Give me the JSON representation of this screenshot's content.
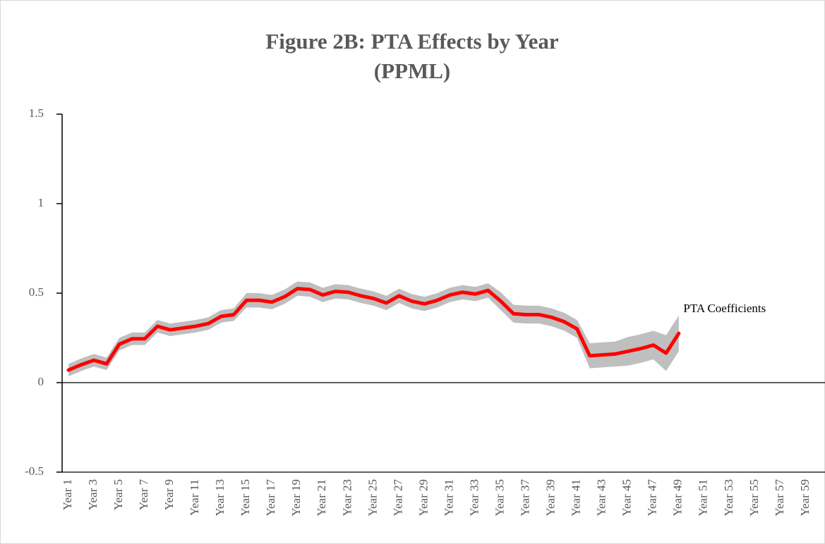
{
  "chart_data": {
    "type": "line",
    "title": [
      "Figure 2B: PTA Effects by Year",
      "(PPML)"
    ],
    "categories": [
      "Year 1",
      null,
      "Year 3",
      null,
      "Year 5",
      null,
      "Year 7",
      null,
      "Year 9",
      null,
      "Year 11",
      null,
      "Year 13",
      null,
      "Year 15",
      null,
      "Year 17",
      null,
      "Year 19",
      null,
      "Year 21",
      null,
      "Year 23",
      null,
      "Year 25",
      null,
      "Year 27",
      null,
      "Year 29",
      null,
      "Year 31",
      null,
      "Year 33",
      null,
      "Year 35",
      null,
      "Year 37",
      null,
      "Year 39",
      null,
      "Year 41",
      null,
      "Year 43",
      null,
      "Year 45",
      null,
      "Year 47",
      null,
      "Year 49",
      null,
      "Year 51",
      null,
      "Year 53",
      null,
      "Year 55",
      null,
      "Year 57",
      null,
      "Year 59",
      null
    ],
    "series": [
      {
        "name": "PTA Coefficients",
        "color": "#ff0000",
        "values": [
          0.07,
          0.1,
          0.125,
          0.105,
          0.215,
          0.245,
          0.245,
          0.315,
          0.295,
          0.305,
          0.315,
          0.33,
          0.37,
          0.38,
          0.46,
          0.46,
          0.45,
          0.48,
          0.525,
          0.52,
          0.49,
          0.51,
          0.505,
          0.485,
          0.47,
          0.445,
          0.485,
          0.455,
          0.44,
          0.46,
          0.49,
          0.505,
          0.495,
          0.515,
          0.455,
          0.385,
          0.38,
          0.38,
          0.365,
          0.34,
          0.3,
          0.15,
          0.155,
          0.16,
          0.175,
          0.19,
          0.21,
          0.165,
          0.275,
          null,
          null,
          null,
          null,
          null,
          null,
          null,
          null,
          null,
          null,
          null
        ]
      }
    ],
    "band": {
      "color": "#bfbfbf",
      "lower": [
        0.035,
        0.065,
        0.09,
        0.07,
        0.18,
        0.21,
        0.21,
        0.28,
        0.26,
        0.27,
        0.28,
        0.295,
        0.335,
        0.345,
        0.42,
        0.42,
        0.41,
        0.44,
        0.485,
        0.48,
        0.45,
        0.47,
        0.465,
        0.445,
        0.43,
        0.405,
        0.445,
        0.415,
        0.4,
        0.42,
        0.45,
        0.465,
        0.455,
        0.475,
        0.405,
        0.335,
        0.33,
        0.33,
        0.315,
        0.29,
        0.25,
        0.08,
        0.085,
        0.09,
        0.095,
        0.11,
        0.13,
        0.065,
        0.175,
        null,
        null,
        null,
        null,
        null,
        null,
        null,
        null,
        null,
        null,
        null
      ],
      "upper": [
        0.105,
        0.135,
        0.16,
        0.14,
        0.25,
        0.28,
        0.28,
        0.35,
        0.33,
        0.34,
        0.35,
        0.365,
        0.405,
        0.415,
        0.5,
        0.5,
        0.49,
        0.52,
        0.565,
        0.56,
        0.53,
        0.55,
        0.545,
        0.525,
        0.51,
        0.485,
        0.525,
        0.495,
        0.48,
        0.5,
        0.53,
        0.545,
        0.535,
        0.555,
        0.505,
        0.435,
        0.43,
        0.43,
        0.415,
        0.39,
        0.35,
        0.22,
        0.225,
        0.23,
        0.255,
        0.27,
        0.29,
        0.265,
        0.375,
        null,
        null,
        null,
        null,
        null,
        null,
        null,
        null,
        null,
        null,
        null
      ]
    },
    "ylim": [
      -0.5,
      1.5
    ],
    "yticks": [
      -0.5,
      0,
      0.5,
      1,
      1.5
    ]
  }
}
